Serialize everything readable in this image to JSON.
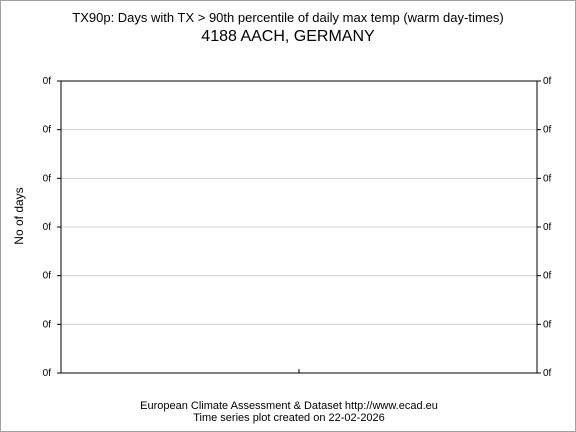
{
  "chart_data": {
    "type": "line",
    "title": "TX90p: Days with TX > 90th percentile of daily max temp (warm day-times)",
    "subtitle": "4188 AACH, GERMANY",
    "ylabel": "No of days",
    "xlabel": "",
    "y_tick_labels": [
      "0f",
      "0f",
      "0f",
      "0f",
      "0f",
      "0f",
      "0f"
    ],
    "series": [],
    "grid": true
  },
  "footer": {
    "line1": "European Climate Assessment & Dataset  http://www.ecad.eu",
    "line2": "Time series plot created on 22-02-2026"
  }
}
